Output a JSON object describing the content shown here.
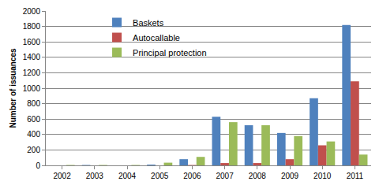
{
  "chart_data": {
    "type": "bar",
    "y_label": "Number of issuances",
    "categories": [
      "2002",
      "2003",
      "2004",
      "2005",
      "2006",
      "2007",
      "2008",
      "2009",
      "2010",
      "2011"
    ],
    "series": [
      {
        "name": "Baskets",
        "color": "#4f81bd",
        "values": [
          0,
          5,
          0,
          10,
          80,
          630,
          520,
          420,
          870,
          1820
        ]
      },
      {
        "name": "Autocallable",
        "color": "#c0504d",
        "values": [
          0,
          0,
          0,
          0,
          5,
          30,
          30,
          80,
          260,
          1090
        ]
      },
      {
        "name": "Principal protection",
        "color": "#9bbb59",
        "values": [
          5,
          5,
          5,
          35,
          110,
          560,
          520,
          380,
          310,
          140
        ]
      }
    ],
    "ylim": [
      0,
      2000
    ],
    "yticks": [
      0,
      200,
      400,
      600,
      800,
      1000,
      1200,
      1400,
      1600,
      1800,
      2000
    ],
    "grid": true,
    "legend": "upper left"
  }
}
